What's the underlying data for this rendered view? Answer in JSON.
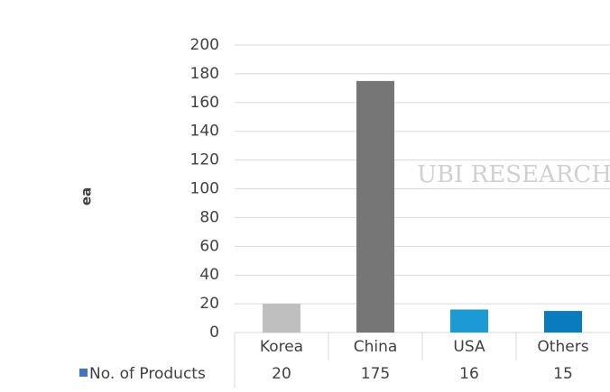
{
  "chart_data": {
    "type": "bar",
    "y_label": "ea",
    "watermark": "UBI RESEARCH",
    "categories": [
      "Korea",
      "China",
      "USA",
      "Others"
    ],
    "series": [
      {
        "name": "No. of Products",
        "color": "#4472c4",
        "bar_colors": [
          "#bfbfbf",
          "#767676",
          "#1b9ad6",
          "#0b7bbf"
        ],
        "values": [
          20,
          175,
          16,
          15
        ]
      }
    ],
    "ylim": [
      0,
      200
    ],
    "yticks": [
      0,
      20,
      40,
      60,
      80,
      100,
      120,
      140,
      160,
      180,
      200
    ],
    "grid": true,
    "data_table": true
  }
}
